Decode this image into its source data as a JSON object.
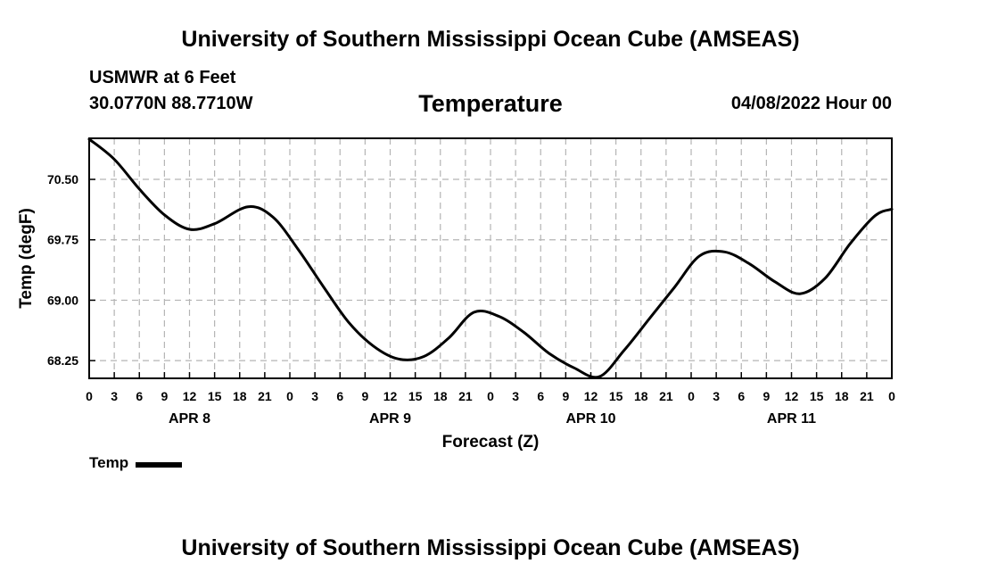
{
  "header": {
    "title": "University of Southern Mississippi Ocean Cube (AMSEAS)",
    "station": "USMWR at 6 Feet",
    "coords": "30.0770N  88.7710W",
    "chart_title": "Temperature",
    "datetime": "04/08/2022 Hour 00"
  },
  "footer": {
    "title": "University of Southern Mississippi Ocean Cube (AMSEAS)"
  },
  "legend": {
    "label": "Temp"
  },
  "colors": {
    "line": "#000000",
    "grid": "#b4b4b4",
    "background": "#ffffff"
  },
  "chart_data": {
    "type": "line",
    "title": "Temperature",
    "xlabel": "Forecast (Z)",
    "ylabel": "Temp (degF)",
    "xlim": [
      0,
      96
    ],
    "ylim": [
      68.03,
      71.01
    ],
    "grid": true,
    "x_tick_values": [
      0,
      3,
      6,
      9,
      12,
      15,
      18,
      21,
      24,
      27,
      30,
      33,
      36,
      39,
      42,
      45,
      48,
      51,
      54,
      57,
      60,
      63,
      66,
      69,
      72,
      75,
      78,
      81,
      84,
      87,
      90,
      93,
      96
    ],
    "x_tick_labels": [
      "0",
      "3",
      "6",
      "9",
      "12",
      "15",
      "18",
      "21",
      "0",
      "3",
      "6",
      "9",
      "12",
      "15",
      "18",
      "21",
      "0",
      "3",
      "6",
      "9",
      "12",
      "15",
      "18",
      "21",
      "0",
      "3",
      "6",
      "9",
      "12",
      "15",
      "18",
      "21",
      "0"
    ],
    "day_labels": [
      {
        "label": "APR 8",
        "x": 12
      },
      {
        "label": "APR 9",
        "x": 36
      },
      {
        "label": "APR 10",
        "x": 60
      },
      {
        "label": "APR 11",
        "x": 84
      }
    ],
    "y_ticks": [
      68.25,
      69.0,
      69.75,
      70.5
    ],
    "y_tick_labels": [
      "68.25",
      "69.00",
      "69.75",
      "70.50"
    ],
    "series": [
      {
        "name": "Temp",
        "x": [
          0,
          3,
          6,
          9,
          12,
          15,
          19,
          22,
          25,
          28,
          31,
          34,
          37,
          40,
          43,
          46,
          49,
          52,
          55,
          58,
          61,
          64,
          67,
          70,
          73,
          76,
          79,
          82,
          85,
          88,
          91,
          94,
          96
        ],
        "y": [
          71.0,
          70.75,
          70.38,
          70.06,
          69.88,
          69.95,
          70.16,
          70.03,
          69.63,
          69.17,
          68.73,
          68.43,
          68.27,
          68.3,
          68.53,
          68.85,
          68.8,
          68.6,
          68.34,
          68.16,
          68.05,
          68.38,
          68.77,
          69.16,
          69.55,
          69.6,
          69.45,
          69.23,
          69.08,
          69.27,
          69.7,
          70.05,
          70.13
        ]
      }
    ]
  }
}
